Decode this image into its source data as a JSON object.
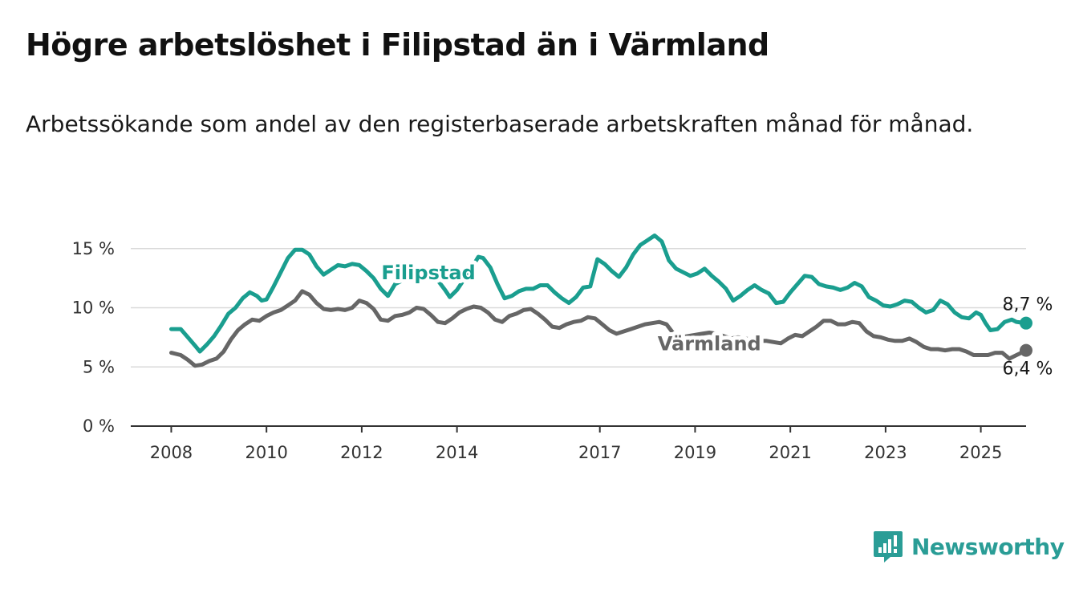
{
  "header": {
    "title": "Högre arbetslöshet i Filipstad än i Värmland",
    "subtitle": "Arbetssökande som andel av den registerbaserade arbetskraften månad för månad."
  },
  "brand": {
    "name": "Newsworthy",
    "icon": "newsworthy-logo-icon",
    "color": "#2a9d96"
  },
  "chart_data": {
    "type": "line",
    "title": "Högre arbetslöshet i Filipstad än i Värmland",
    "subtitle": "Arbetssökande som andel av den registerbaserade arbetskraften månad för månad.",
    "xlabel": "",
    "ylabel": "",
    "x_ticks": [
      "2008",
      "2010",
      "2012",
      "2014",
      "2017",
      "2019",
      "2021",
      "2023",
      "2025"
    ],
    "x_tick_values": [
      2008.0,
      2010.0,
      2012.0,
      2014.0,
      2017.0,
      2019.0,
      2021.0,
      2023.0,
      2025.0
    ],
    "y_ticks": [
      "0 %",
      "5 %",
      "10 %",
      "15 %"
    ],
    "y_tick_values": [
      0,
      5,
      10,
      15
    ],
    "xlim": [
      2007.15,
      2025.95
    ],
    "ylim": [
      0,
      16
    ],
    "grid": "horizontal",
    "legend": "inline labels",
    "series": [
      {
        "name": "Filipstad",
        "color": "#1a9e8f",
        "end_label": "8,7 %",
        "label_at": [
          2013.4,
          12.4
        ],
        "points": [
          [
            2008.0,
            8.2
          ],
          [
            2008.2,
            8.2
          ],
          [
            2008.35,
            7.5
          ],
          [
            2008.5,
            6.8
          ],
          [
            2008.6,
            6.3
          ],
          [
            2008.75,
            6.9
          ],
          [
            2008.9,
            7.6
          ],
          [
            2009.05,
            8.5
          ],
          [
            2009.2,
            9.5
          ],
          [
            2009.35,
            10.0
          ],
          [
            2009.5,
            10.8
          ],
          [
            2009.65,
            11.3
          ],
          [
            2009.8,
            11.0
          ],
          [
            2009.9,
            10.6
          ],
          [
            2010.0,
            10.7
          ],
          [
            2010.15,
            11.8
          ],
          [
            2010.3,
            13.0
          ],
          [
            2010.45,
            14.2
          ],
          [
            2010.6,
            14.9
          ],
          [
            2010.75,
            14.9
          ],
          [
            2010.9,
            14.5
          ],
          [
            2011.05,
            13.5
          ],
          [
            2011.2,
            12.8
          ],
          [
            2011.35,
            13.2
          ],
          [
            2011.5,
            13.6
          ],
          [
            2011.65,
            13.5
          ],
          [
            2011.8,
            13.7
          ],
          [
            2011.95,
            13.6
          ],
          [
            2012.1,
            13.1
          ],
          [
            2012.25,
            12.5
          ],
          [
            2012.4,
            11.6
          ],
          [
            2012.55,
            11.0
          ],
          [
            2012.7,
            12.0
          ],
          [
            2012.85,
            12.3
          ],
          [
            2013.0,
            12.6
          ],
          [
            2013.15,
            13.0
          ],
          [
            2013.3,
            13.3
          ],
          [
            2013.45,
            13.1
          ],
          [
            2013.6,
            12.3
          ],
          [
            2013.75,
            11.5
          ],
          [
            2013.85,
            10.9
          ],
          [
            2014.0,
            11.5
          ],
          [
            2014.15,
            12.4
          ],
          [
            2014.3,
            13.3
          ],
          [
            2014.45,
            14.3
          ],
          [
            2014.55,
            14.2
          ],
          [
            2014.7,
            13.4
          ],
          [
            2014.85,
            12.0
          ],
          [
            2015.0,
            10.8
          ],
          [
            2015.15,
            11.0
          ],
          [
            2015.3,
            11.4
          ],
          [
            2015.45,
            11.6
          ],
          [
            2015.6,
            11.6
          ],
          [
            2015.75,
            11.9
          ],
          [
            2015.9,
            11.9
          ],
          [
            2016.05,
            11.3
          ],
          [
            2016.2,
            10.8
          ],
          [
            2016.35,
            10.4
          ],
          [
            2016.5,
            10.9
          ],
          [
            2016.65,
            11.7
          ],
          [
            2016.8,
            11.8
          ],
          [
            2016.95,
            14.1
          ],
          [
            2017.1,
            13.7
          ],
          [
            2017.25,
            13.1
          ],
          [
            2017.4,
            12.6
          ],
          [
            2017.55,
            13.4
          ],
          [
            2017.7,
            14.5
          ],
          [
            2017.85,
            15.3
          ],
          [
            2018.0,
            15.7
          ],
          [
            2018.15,
            16.1
          ],
          [
            2018.3,
            15.6
          ],
          [
            2018.45,
            14.0
          ],
          [
            2018.6,
            13.3
          ],
          [
            2018.75,
            13.0
          ],
          [
            2018.9,
            12.7
          ],
          [
            2019.05,
            12.9
          ],
          [
            2019.2,
            13.3
          ],
          [
            2019.35,
            12.7
          ],
          [
            2019.5,
            12.2
          ],
          [
            2019.65,
            11.6
          ],
          [
            2019.8,
            10.6
          ],
          [
            2019.95,
            11.0
          ],
          [
            2020.1,
            11.5
          ],
          [
            2020.25,
            11.9
          ],
          [
            2020.4,
            11.5
          ],
          [
            2020.55,
            11.2
          ],
          [
            2020.7,
            10.4
          ],
          [
            2020.85,
            10.5
          ],
          [
            2021.0,
            11.3
          ],
          [
            2021.15,
            12.0
          ],
          [
            2021.3,
            12.7
          ],
          [
            2021.45,
            12.6
          ],
          [
            2021.6,
            12.0
          ],
          [
            2021.75,
            11.8
          ],
          [
            2021.9,
            11.7
          ],
          [
            2022.05,
            11.5
          ],
          [
            2022.2,
            11.7
          ],
          [
            2022.35,
            12.1
          ],
          [
            2022.5,
            11.8
          ],
          [
            2022.65,
            10.9
          ],
          [
            2022.8,
            10.6
          ],
          [
            2022.95,
            10.2
          ],
          [
            2023.1,
            10.1
          ],
          [
            2023.25,
            10.3
          ],
          [
            2023.4,
            10.6
          ],
          [
            2023.55,
            10.5
          ],
          [
            2023.7,
            10.0
          ],
          [
            2023.85,
            9.6
          ],
          [
            2024.0,
            9.8
          ],
          [
            2024.15,
            10.6
          ],
          [
            2024.3,
            10.3
          ],
          [
            2024.45,
            9.6
          ],
          [
            2024.6,
            9.2
          ],
          [
            2024.75,
            9.1
          ],
          [
            2024.9,
            9.6
          ],
          [
            2025.0,
            9.4
          ],
          [
            2025.1,
            8.7
          ],
          [
            2025.2,
            8.1
          ],
          [
            2025.35,
            8.2
          ],
          [
            2025.5,
            8.8
          ],
          [
            2025.65,
            9.0
          ],
          [
            2025.75,
            8.8
          ],
          [
            2025.95,
            8.7
          ]
        ]
      },
      {
        "name": "Värmland",
        "color": "#666666",
        "end_label": "6,4 %",
        "label_at": [
          2019.3,
          6.4
        ],
        "points": [
          [
            2008.0,
            6.2
          ],
          [
            2008.2,
            6.0
          ],
          [
            2008.35,
            5.6
          ],
          [
            2008.5,
            5.1
          ],
          [
            2008.65,
            5.2
          ],
          [
            2008.8,
            5.5
          ],
          [
            2008.95,
            5.7
          ],
          [
            2009.1,
            6.3
          ],
          [
            2009.25,
            7.3
          ],
          [
            2009.4,
            8.1
          ],
          [
            2009.55,
            8.6
          ],
          [
            2009.7,
            9.0
          ],
          [
            2009.85,
            8.9
          ],
          [
            2010.0,
            9.3
          ],
          [
            2010.15,
            9.6
          ],
          [
            2010.3,
            9.8
          ],
          [
            2010.45,
            10.2
          ],
          [
            2010.6,
            10.6
          ],
          [
            2010.75,
            11.4
          ],
          [
            2010.9,
            11.1
          ],
          [
            2011.05,
            10.4
          ],
          [
            2011.2,
            9.9
          ],
          [
            2011.35,
            9.8
          ],
          [
            2011.5,
            9.9
          ],
          [
            2011.65,
            9.8
          ],
          [
            2011.8,
            10.0
          ],
          [
            2011.95,
            10.6
          ],
          [
            2012.1,
            10.4
          ],
          [
            2012.25,
            9.9
          ],
          [
            2012.4,
            9.0
          ],
          [
            2012.55,
            8.9
          ],
          [
            2012.7,
            9.3
          ],
          [
            2012.85,
            9.4
          ],
          [
            2013.0,
            9.6
          ],
          [
            2013.15,
            10.0
          ],
          [
            2013.3,
            9.9
          ],
          [
            2013.45,
            9.4
          ],
          [
            2013.6,
            8.8
          ],
          [
            2013.75,
            8.7
          ],
          [
            2013.9,
            9.1
          ],
          [
            2014.05,
            9.6
          ],
          [
            2014.2,
            9.9
          ],
          [
            2014.35,
            10.1
          ],
          [
            2014.5,
            10.0
          ],
          [
            2014.65,
            9.6
          ],
          [
            2014.8,
            9.0
          ],
          [
            2014.95,
            8.8
          ],
          [
            2015.1,
            9.3
          ],
          [
            2015.25,
            9.5
          ],
          [
            2015.4,
            9.8
          ],
          [
            2015.55,
            9.9
          ],
          [
            2015.7,
            9.5
          ],
          [
            2015.85,
            9.0
          ],
          [
            2016.0,
            8.4
          ],
          [
            2016.15,
            8.3
          ],
          [
            2016.3,
            8.6
          ],
          [
            2016.45,
            8.8
          ],
          [
            2016.6,
            8.9
          ],
          [
            2016.75,
            9.2
          ],
          [
            2016.9,
            9.1
          ],
          [
            2017.05,
            8.6
          ],
          [
            2017.2,
            8.1
          ],
          [
            2017.35,
            7.8
          ],
          [
            2017.5,
            8.0
          ],
          [
            2017.65,
            8.2
          ],
          [
            2017.8,
            8.4
          ],
          [
            2017.95,
            8.6
          ],
          [
            2018.1,
            8.7
          ],
          [
            2018.25,
            8.8
          ],
          [
            2018.4,
            8.6
          ],
          [
            2018.55,
            7.8
          ],
          [
            2018.7,
            7.5
          ],
          [
            2018.85,
            7.6
          ],
          [
            2019.0,
            7.7
          ],
          [
            2019.15,
            7.8
          ],
          [
            2019.3,
            7.9
          ],
          [
            2019.45,
            7.8
          ],
          [
            2019.6,
            7.6
          ],
          [
            2019.75,
            7.4
          ],
          [
            2019.9,
            7.5
          ],
          [
            2020.05,
            7.4
          ],
          [
            2020.2,
            7.3
          ],
          [
            2020.35,
            7.2
          ],
          [
            2020.5,
            7.2
          ],
          [
            2020.65,
            7.1
          ],
          [
            2020.8,
            7.0
          ],
          [
            2020.95,
            7.4
          ],
          [
            2021.1,
            7.7
          ],
          [
            2021.25,
            7.6
          ],
          [
            2021.4,
            8.0
          ],
          [
            2021.55,
            8.4
          ],
          [
            2021.7,
            8.9
          ],
          [
            2021.85,
            8.9
          ],
          [
            2022.0,
            8.6
          ],
          [
            2022.15,
            8.6
          ],
          [
            2022.3,
            8.8
          ],
          [
            2022.45,
            8.7
          ],
          [
            2022.6,
            8.0
          ],
          [
            2022.75,
            7.6
          ],
          [
            2022.9,
            7.5
          ],
          [
            2023.05,
            7.3
          ],
          [
            2023.2,
            7.2
          ],
          [
            2023.35,
            7.2
          ],
          [
            2023.5,
            7.4
          ],
          [
            2023.65,
            7.1
          ],
          [
            2023.8,
            6.7
          ],
          [
            2023.95,
            6.5
          ],
          [
            2024.1,
            6.5
          ],
          [
            2024.25,
            6.4
          ],
          [
            2024.4,
            6.5
          ],
          [
            2024.55,
            6.5
          ],
          [
            2024.7,
            6.3
          ],
          [
            2024.85,
            6.0
          ],
          [
            2025.0,
            6.0
          ],
          [
            2025.15,
            6.0
          ],
          [
            2025.3,
            6.2
          ],
          [
            2025.45,
            6.2
          ],
          [
            2025.6,
            5.7
          ],
          [
            2025.75,
            6.0
          ],
          [
            2025.85,
            6.2
          ],
          [
            2025.95,
            6.4
          ]
        ]
      }
    ]
  }
}
